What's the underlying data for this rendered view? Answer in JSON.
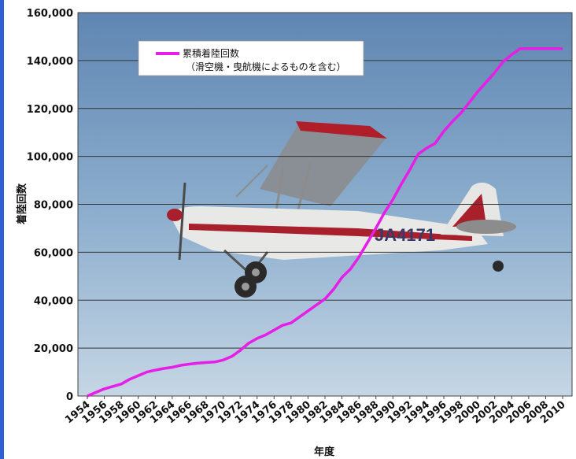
{
  "chart_data": {
    "type": "line",
    "title": "",
    "xlabel": "年度",
    "ylabel": "着陸回数",
    "ylim": [
      0,
      160000
    ],
    "y_ticks": [
      0,
      20000,
      40000,
      60000,
      80000,
      100000,
      120000,
      140000,
      160000
    ],
    "y_tick_labels": [
      "0",
      "20,000",
      "40,000",
      "60,000",
      "80,000",
      "100,000",
      "120,000",
      "140,000",
      "160,000"
    ],
    "x_tick_labels": [
      "1954",
      "1956",
      "1958",
      "1960",
      "1962",
      "1964",
      "1966",
      "1968",
      "1970",
      "1972",
      "1974",
      "1976",
      "1978",
      "1980",
      "1982",
      "1984",
      "1986",
      "1988",
      "1990",
      "1992",
      "1994",
      "1996",
      "1998",
      "2000",
      "2002",
      "2004",
      "2006",
      "2008",
      "2010"
    ],
    "grid": true,
    "legend_position": "top-left",
    "background": "photo of a red-and-white high-wing light aircraft (JA4171) in flight against a blue sky",
    "series": [
      {
        "name": "累積着陸回数",
        "name_line2": "（滑空機・曳航機によるものを含む）",
        "color": "#e61ee6",
        "x": [
          1954,
          1955,
          1956,
          1957,
          1958,
          1959,
          1960,
          1961,
          1962,
          1963,
          1964,
          1965,
          1966,
          1967,
          1968,
          1969,
          1970,
          1971,
          1972,
          1973,
          1974,
          1975,
          1976,
          1977,
          1978,
          1979,
          1980,
          1981,
          1982,
          1983,
          1984,
          1985,
          1986,
          1987,
          1988,
          1989,
          1990,
          1991,
          1992,
          1993,
          1994,
          1995,
          1996,
          1997,
          1998,
          1999,
          2000,
          2001,
          2002,
          2003,
          2004,
          2005,
          2006,
          2007,
          2008,
          2009,
          2010
        ],
        "values": [
          0,
          1500,
          3000,
          4000,
          5000,
          7000,
          8500,
          10000,
          10800,
          11500,
          12000,
          12800,
          13300,
          13700,
          14000,
          14200,
          15000,
          16500,
          19000,
          22000,
          24000,
          25500,
          27500,
          29500,
          30500,
          33000,
          35500,
          38000,
          40500,
          44500,
          49500,
          53000,
          58000,
          64000,
          70000,
          76500,
          82000,
          88500,
          94500,
          101000,
          103500,
          105500,
          110500,
          114500,
          118000,
          122500,
          127000,
          131000,
          135000,
          139500,
          142500,
          145000,
          145000,
          145000,
          145000,
          145000,
          145000
        ]
      }
    ]
  }
}
